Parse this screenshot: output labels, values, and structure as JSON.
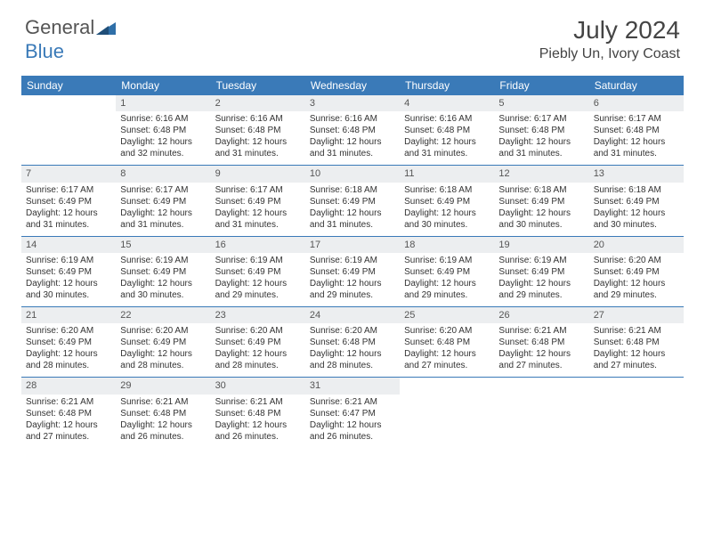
{
  "brand": {
    "name_part1": "General",
    "name_part2": "Blue"
  },
  "title": "July 2024",
  "location": "Piebly Un, Ivory Coast",
  "colors": {
    "header_bg": "#3a7ab8",
    "daynum_bg": "#eceef0",
    "text": "#333333",
    "rule": "#3a7ab8"
  },
  "typography": {
    "title_fontsize": 28,
    "location_fontsize": 16,
    "dayheader_fontsize": 12,
    "body_fontsize": 10
  },
  "day_headers": [
    "Sunday",
    "Monday",
    "Tuesday",
    "Wednesday",
    "Thursday",
    "Friday",
    "Saturday"
  ],
  "weeks": [
    [
      null,
      {
        "n": "1",
        "sr": "Sunrise: 6:16 AM",
        "ss": "Sunset: 6:48 PM",
        "dl1": "Daylight: 12 hours",
        "dl2": "and 32 minutes."
      },
      {
        "n": "2",
        "sr": "Sunrise: 6:16 AM",
        "ss": "Sunset: 6:48 PM",
        "dl1": "Daylight: 12 hours",
        "dl2": "and 31 minutes."
      },
      {
        "n": "3",
        "sr": "Sunrise: 6:16 AM",
        "ss": "Sunset: 6:48 PM",
        "dl1": "Daylight: 12 hours",
        "dl2": "and 31 minutes."
      },
      {
        "n": "4",
        "sr": "Sunrise: 6:16 AM",
        "ss": "Sunset: 6:48 PM",
        "dl1": "Daylight: 12 hours",
        "dl2": "and 31 minutes."
      },
      {
        "n": "5",
        "sr": "Sunrise: 6:17 AM",
        "ss": "Sunset: 6:48 PM",
        "dl1": "Daylight: 12 hours",
        "dl2": "and 31 minutes."
      },
      {
        "n": "6",
        "sr": "Sunrise: 6:17 AM",
        "ss": "Sunset: 6:48 PM",
        "dl1": "Daylight: 12 hours",
        "dl2": "and 31 minutes."
      }
    ],
    [
      {
        "n": "7",
        "sr": "Sunrise: 6:17 AM",
        "ss": "Sunset: 6:49 PM",
        "dl1": "Daylight: 12 hours",
        "dl2": "and 31 minutes."
      },
      {
        "n": "8",
        "sr": "Sunrise: 6:17 AM",
        "ss": "Sunset: 6:49 PM",
        "dl1": "Daylight: 12 hours",
        "dl2": "and 31 minutes."
      },
      {
        "n": "9",
        "sr": "Sunrise: 6:17 AM",
        "ss": "Sunset: 6:49 PM",
        "dl1": "Daylight: 12 hours",
        "dl2": "and 31 minutes."
      },
      {
        "n": "10",
        "sr": "Sunrise: 6:18 AM",
        "ss": "Sunset: 6:49 PM",
        "dl1": "Daylight: 12 hours",
        "dl2": "and 31 minutes."
      },
      {
        "n": "11",
        "sr": "Sunrise: 6:18 AM",
        "ss": "Sunset: 6:49 PM",
        "dl1": "Daylight: 12 hours",
        "dl2": "and 30 minutes."
      },
      {
        "n": "12",
        "sr": "Sunrise: 6:18 AM",
        "ss": "Sunset: 6:49 PM",
        "dl1": "Daylight: 12 hours",
        "dl2": "and 30 minutes."
      },
      {
        "n": "13",
        "sr": "Sunrise: 6:18 AM",
        "ss": "Sunset: 6:49 PM",
        "dl1": "Daylight: 12 hours",
        "dl2": "and 30 minutes."
      }
    ],
    [
      {
        "n": "14",
        "sr": "Sunrise: 6:19 AM",
        "ss": "Sunset: 6:49 PM",
        "dl1": "Daylight: 12 hours",
        "dl2": "and 30 minutes."
      },
      {
        "n": "15",
        "sr": "Sunrise: 6:19 AM",
        "ss": "Sunset: 6:49 PM",
        "dl1": "Daylight: 12 hours",
        "dl2": "and 30 minutes."
      },
      {
        "n": "16",
        "sr": "Sunrise: 6:19 AM",
        "ss": "Sunset: 6:49 PM",
        "dl1": "Daylight: 12 hours",
        "dl2": "and 29 minutes."
      },
      {
        "n": "17",
        "sr": "Sunrise: 6:19 AM",
        "ss": "Sunset: 6:49 PM",
        "dl1": "Daylight: 12 hours",
        "dl2": "and 29 minutes."
      },
      {
        "n": "18",
        "sr": "Sunrise: 6:19 AM",
        "ss": "Sunset: 6:49 PM",
        "dl1": "Daylight: 12 hours",
        "dl2": "and 29 minutes."
      },
      {
        "n": "19",
        "sr": "Sunrise: 6:19 AM",
        "ss": "Sunset: 6:49 PM",
        "dl1": "Daylight: 12 hours",
        "dl2": "and 29 minutes."
      },
      {
        "n": "20",
        "sr": "Sunrise: 6:20 AM",
        "ss": "Sunset: 6:49 PM",
        "dl1": "Daylight: 12 hours",
        "dl2": "and 29 minutes."
      }
    ],
    [
      {
        "n": "21",
        "sr": "Sunrise: 6:20 AM",
        "ss": "Sunset: 6:49 PM",
        "dl1": "Daylight: 12 hours",
        "dl2": "and 28 minutes."
      },
      {
        "n": "22",
        "sr": "Sunrise: 6:20 AM",
        "ss": "Sunset: 6:49 PM",
        "dl1": "Daylight: 12 hours",
        "dl2": "and 28 minutes."
      },
      {
        "n": "23",
        "sr": "Sunrise: 6:20 AM",
        "ss": "Sunset: 6:49 PM",
        "dl1": "Daylight: 12 hours",
        "dl2": "and 28 minutes."
      },
      {
        "n": "24",
        "sr": "Sunrise: 6:20 AM",
        "ss": "Sunset: 6:48 PM",
        "dl1": "Daylight: 12 hours",
        "dl2": "and 28 minutes."
      },
      {
        "n": "25",
        "sr": "Sunrise: 6:20 AM",
        "ss": "Sunset: 6:48 PM",
        "dl1": "Daylight: 12 hours",
        "dl2": "and 27 minutes."
      },
      {
        "n": "26",
        "sr": "Sunrise: 6:21 AM",
        "ss": "Sunset: 6:48 PM",
        "dl1": "Daylight: 12 hours",
        "dl2": "and 27 minutes."
      },
      {
        "n": "27",
        "sr": "Sunrise: 6:21 AM",
        "ss": "Sunset: 6:48 PM",
        "dl1": "Daylight: 12 hours",
        "dl2": "and 27 minutes."
      }
    ],
    [
      {
        "n": "28",
        "sr": "Sunrise: 6:21 AM",
        "ss": "Sunset: 6:48 PM",
        "dl1": "Daylight: 12 hours",
        "dl2": "and 27 minutes."
      },
      {
        "n": "29",
        "sr": "Sunrise: 6:21 AM",
        "ss": "Sunset: 6:48 PM",
        "dl1": "Daylight: 12 hours",
        "dl2": "and 26 minutes."
      },
      {
        "n": "30",
        "sr": "Sunrise: 6:21 AM",
        "ss": "Sunset: 6:48 PM",
        "dl1": "Daylight: 12 hours",
        "dl2": "and 26 minutes."
      },
      {
        "n": "31",
        "sr": "Sunrise: 6:21 AM",
        "ss": "Sunset: 6:47 PM",
        "dl1": "Daylight: 12 hours",
        "dl2": "and 26 minutes."
      },
      null,
      null,
      null
    ]
  ]
}
